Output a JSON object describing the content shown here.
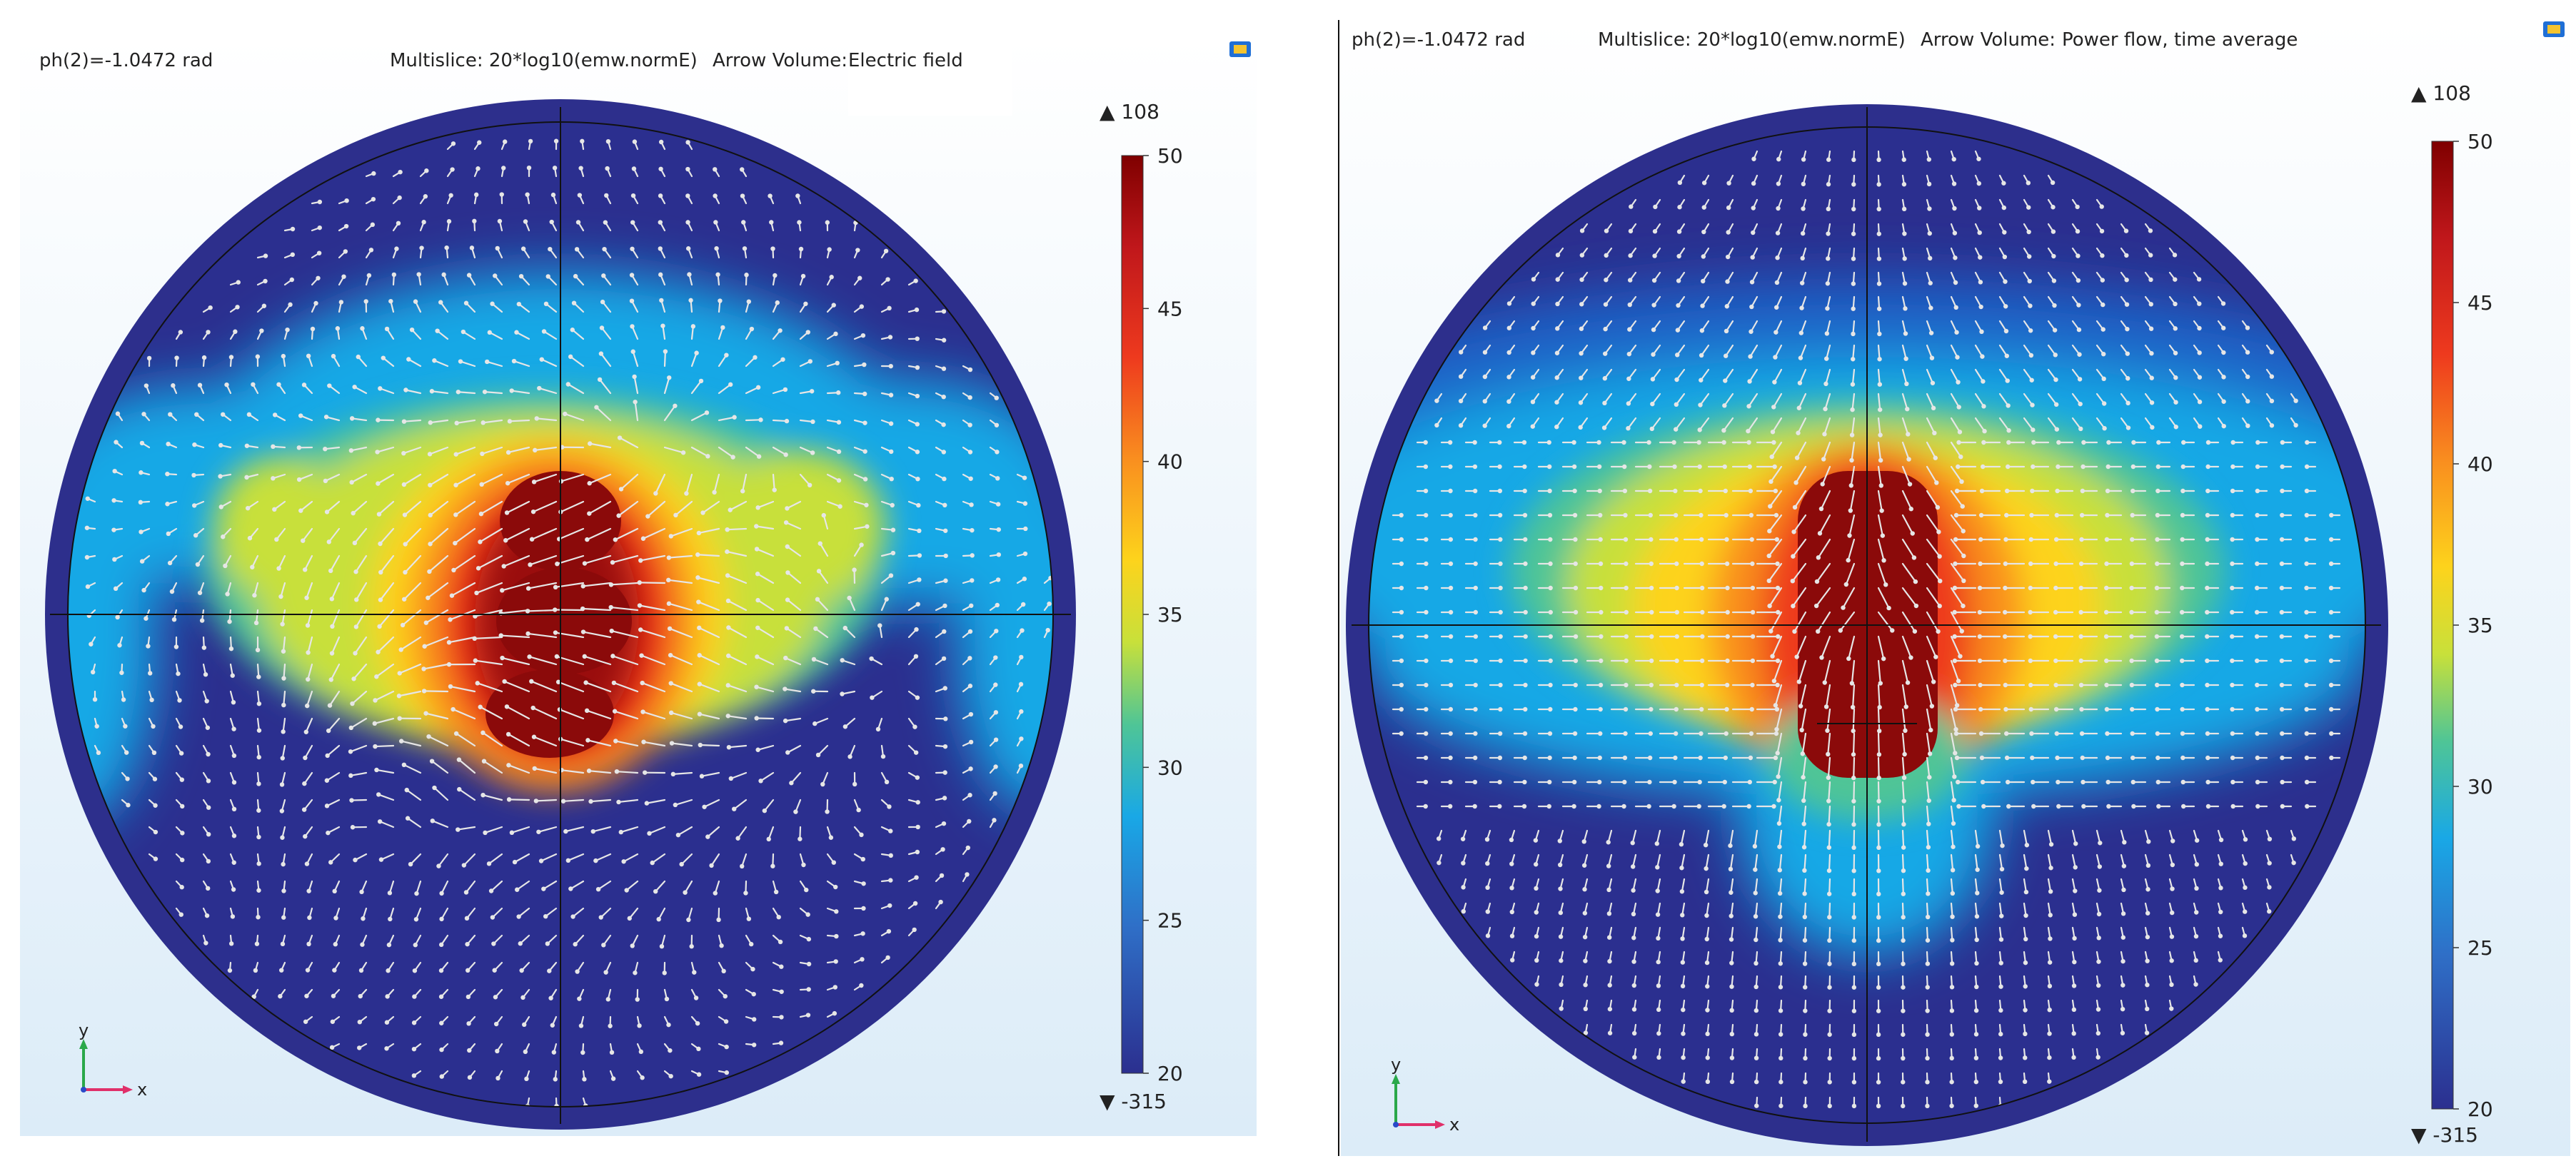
{
  "panels": [
    {
      "param": "ph(2)=-1.0472 rad",
      "expression": "Multislice: 20*log10(emw.normE)",
      "arrow_label": "Arrow Volume:",
      "arrow_quantity": "Electric field",
      "colorbar": {
        "max_marker": "▲ 108",
        "min_marker": "▼ -315",
        "ticks": [
          "50",
          "45",
          "40",
          "35",
          "30",
          "25",
          "20"
        ],
        "tick_values": [
          50,
          45,
          40,
          35,
          30,
          25,
          20
        ],
        "range": [
          20,
          50
        ]
      },
      "axis_x": "x",
      "axis_y": "y",
      "arrow_field": "swirl"
    },
    {
      "param": "ph(2)=-1.0472 rad",
      "expression": "Multislice: 20*log10(emw.normE)",
      "arrow_label": "Arrow Volume:",
      "arrow_quantity": "Power flow, time average",
      "colorbar": {
        "max_marker": "▲ 108",
        "min_marker": "▼ -315",
        "ticks": [
          "50",
          "45",
          "40",
          "35",
          "30",
          "25",
          "20"
        ],
        "tick_values": [
          50,
          45,
          40,
          35,
          30,
          25,
          20
        ],
        "range": [
          20,
          50
        ]
      },
      "axis_x": "x",
      "axis_y": "y",
      "arrow_field": "radial"
    }
  ],
  "colors": {
    "jet_stops": [
      "#7f0000",
      "#d7191c",
      "#f46d1b",
      "#fdae2b",
      "#fff200",
      "#9bd84a",
      "#2fc2b4",
      "#19a8e6",
      "#1e64c8",
      "#2b2f8f"
    ],
    "background_gradient_top": "#ffffff",
    "background_gradient_bottom": "#dcecf8",
    "rim": "#2b2f8f",
    "arrow": "#e6e6e6",
    "axis_x": "#e0306a",
    "axis_y": "#2aa84a",
    "axis_z": "#2a4ac8"
  },
  "icons": [
    "camera-icon",
    "camera-icon"
  ]
}
